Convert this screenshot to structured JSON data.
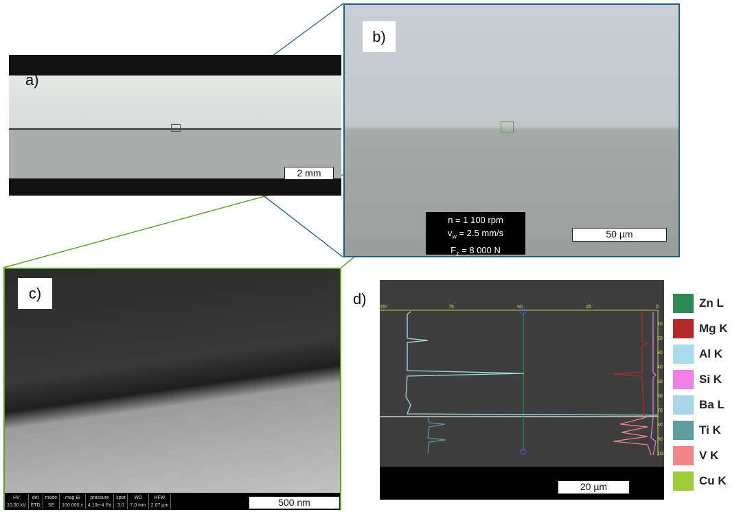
{
  "panels": {
    "a": {
      "label": "a)",
      "scale_bar": "2 mm"
    },
    "b": {
      "label": "b)",
      "scale_bar": "50 µm",
      "parameters": {
        "n": "n = 1 100 rpm",
        "vw": {
          "symbol": "v",
          "subscript": "w",
          "rest": " = 2.5 mm/s"
        },
        "fz": {
          "symbol": "F",
          "subscript": "z",
          "rest": " = 8 000 N"
        }
      }
    },
    "c": {
      "label": "c)",
      "scale_bar": "500 nm",
      "info_bar": [
        {
          "key": "HV",
          "value": "10.00 kV"
        },
        {
          "key": "det",
          "value": "ETD"
        },
        {
          "key": "mode",
          "value": "SE"
        },
        {
          "key": "mag ⊞",
          "value": "100 000 x"
        },
        {
          "key": "pressure",
          "value": "4.10e-4 Pa"
        },
        {
          "key": "spot",
          "value": "3.0"
        },
        {
          "key": "WD",
          "value": "7.0 mm"
        },
        {
          "key": "HFW",
          "value": "2.07 µm"
        }
      ]
    },
    "d": {
      "label": "d)",
      "scale_bar": "20 µm",
      "top_ticks": [
        "100",
        "75",
        "50",
        "25",
        "0"
      ],
      "right_ticks": [
        "10",
        "20",
        "30",
        "40",
        "50",
        "60",
        "70",
        "80",
        "90",
        "100"
      ],
      "legend": [
        {
          "name": "Zn L",
          "color": "#2e8a55"
        },
        {
          "name": "Mg K",
          "color": "#b32a2a"
        },
        {
          "name": "Al K",
          "color": "#a9dbe8"
        },
        {
          "name": "Si K",
          "color": "#f07fe6"
        },
        {
          "name": "Ba L",
          "color": "#a6d6e6"
        },
        {
          "name": "Ti K",
          "color": "#5d9ea0"
        },
        {
          "name": "V K",
          "color": "#f28585"
        },
        {
          "name": "Cu K",
          "color": "#9ccc3a"
        }
      ]
    }
  }
}
